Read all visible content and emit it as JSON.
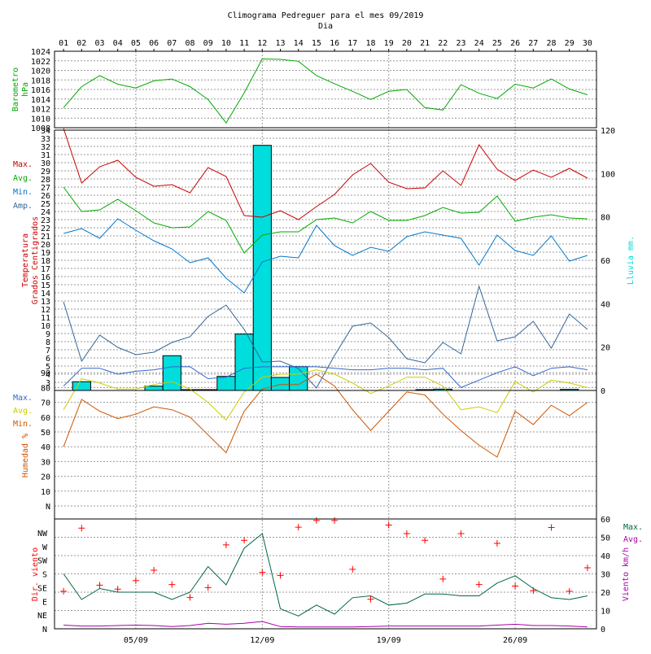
{
  "chart_data": {
    "type": "line",
    "title": "Climograma Pedreguer para el mes 09/2019",
    "xlabel": "Dia",
    "days": [
      "01",
      "02",
      "03",
      "04",
      "05",
      "06",
      "07",
      "08",
      "09",
      "10",
      "11",
      "12",
      "13",
      "14",
      "15",
      "16",
      "17",
      "18",
      "19",
      "20",
      "21",
      "22",
      "23",
      "24",
      "25",
      "26",
      "27",
      "28",
      "29",
      "30"
    ],
    "week_ticks": [
      "05/09",
      "12/09",
      "19/09",
      "26/09"
    ],
    "colors": {
      "max": "#cc0000",
      "avg": "#00aa00",
      "min": "#0077cc",
      "amp": "#336699",
      "rain": "#00dddd",
      "pressure": "#00aa00",
      "hum_max": "#3366cc",
      "hum_avg": "#cccc00",
      "hum_min": "#cc5500",
      "wind_dir": "#ff0000",
      "wind_max": "#006644",
      "wind_avg": "#aa00aa"
    },
    "pressure": {
      "ylabel": "Barometro hPa",
      "ylim": [
        1008,
        1024
      ],
      "ticks": [
        "1008",
        "1010",
        "1012",
        "1014",
        "1016",
        "1018",
        "1020",
        "1022",
        "1024"
      ],
      "values": [
        1012.2,
        1016.6,
        1018.9,
        1017.1,
        1016.3,
        1017.8,
        1018.2,
        1016.6,
        1013.9,
        1009.0,
        1015.3,
        1022.4,
        1022.3,
        1021.9,
        1018.9,
        1017.2,
        1015.6,
        1013.9,
        1015.6,
        1016.0,
        1012.2,
        1011.7,
        1017.0,
        1015.2,
        1014.1,
        1017.1,
        1016.3,
        1018.2,
        1016.1,
        1014.9
      ]
    },
    "temperature": {
      "ylabel": "Temperatura Grados Centigrados",
      "ylim": [
        2,
        34
      ],
      "ticks": [
        "3",
        "4",
        "5",
        "6",
        "7",
        "8",
        "9",
        "10",
        "11",
        "12",
        "13",
        "14",
        "15",
        "16",
        "17",
        "18",
        "19",
        "20",
        "21",
        "22",
        "23",
        "24",
        "25",
        "26",
        "27",
        "28",
        "29",
        "30",
        "31",
        "32",
        "33",
        "34"
      ],
      "legend": [
        "Max.",
        "Avg.",
        "Min.",
        "Amp."
      ],
      "max": [
        34.2,
        27.5,
        29.5,
        30.3,
        28.2,
        27.1,
        27.3,
        26.3,
        29.4,
        28.3,
        23.5,
        23.3,
        24.1,
        23.0,
        24.6,
        26.1,
        28.5,
        29.9,
        27.6,
        26.8,
        26.9,
        29.0,
        27.2,
        32.2,
        29.2,
        27.8,
        29.1,
        28.2,
        29.3,
        28.1
      ],
      "avg": [
        27.0,
        24.0,
        24.2,
        25.5,
        24.1,
        22.6,
        22.0,
        22.1,
        24.0,
        22.9,
        18.9,
        21.1,
        21.5,
        21.5,
        23.0,
        23.2,
        22.6,
        24.0,
        22.9,
        22.9,
        23.5,
        24.5,
        23.8,
        23.9,
        25.9,
        22.8,
        23.3,
        23.6,
        23.2,
        23.1
      ],
      "min": [
        21.3,
        21.9,
        20.7,
        23.1,
        21.7,
        20.4,
        19.4,
        17.7,
        18.3,
        15.8,
        14.0,
        17.8,
        18.5,
        18.3,
        22.3,
        19.8,
        18.6,
        19.6,
        19.1,
        20.9,
        21.5,
        21.1,
        20.7,
        17.4,
        21.1,
        19.2,
        18.6,
        21.0,
        17.9,
        18.6
      ],
      "amp": [
        12.9,
        5.6,
        8.8,
        7.3,
        6.4,
        6.7,
        7.9,
        8.6,
        11.1,
        12.5,
        9.5,
        5.5,
        5.6,
        4.7,
        2.3,
        6.3,
        9.9,
        10.3,
        8.5,
        5.9,
        5.4,
        7.9,
        6.5,
        14.8,
        8.1,
        8.6,
        10.5,
        7.2,
        11.4,
        9.5
      ]
    },
    "rain": {
      "ylabel": "Lluvia mm.",
      "ylim": [
        0,
        120
      ],
      "ticks": [
        "0",
        "20",
        "40",
        "60",
        "80",
        "100",
        "120"
      ],
      "values": [
        0,
        4,
        0,
        0,
        0,
        2,
        16,
        0.3,
        0.3,
        6.5,
        26,
        113,
        6,
        11,
        0,
        0,
        0,
        0,
        0,
        0,
        0.3,
        0.6,
        0,
        0,
        0,
        0,
        0,
        0,
        0.5,
        0
      ]
    },
    "humidity": {
      "ylabel": "Humedad %",
      "ylim": [
        0,
        100
      ],
      "ticks": [
        "N",
        "10",
        "20",
        "30",
        "40",
        "50",
        "60",
        "70",
        "80",
        "90"
      ],
      "legend": [
        "Max.",
        "Avg.",
        "Min."
      ],
      "max": [
        81,
        93,
        93,
        89,
        91,
        92,
        94,
        94,
        86,
        87,
        93,
        94,
        94,
        94,
        94,
        93,
        92,
        92,
        93,
        93,
        92,
        93,
        80,
        85,
        90,
        94,
        88,
        93,
        94,
        92
      ],
      "avg": [
        65,
        86,
        83,
        79,
        79,
        82,
        84,
        79,
        70,
        58,
        77,
        87,
        89,
        89,
        92,
        89,
        83,
        76,
        81,
        87,
        87,
        81,
        65,
        67,
        63,
        84,
        77,
        85,
        83,
        80
      ],
      "min": [
        40,
        72,
        64,
        59,
        62,
        67,
        65,
        60,
        48,
        36,
        64,
        79,
        82,
        82,
        89,
        81,
        65,
        51,
        64,
        77,
        75,
        62,
        51,
        41,
        33,
        64,
        55,
        68,
        61,
        70
      ]
    },
    "wind": {
      "ylabel_dir": "Dir. viento",
      "ylabel_speed": "Viento km/h",
      "dir_ticks": [
        "N",
        "NE",
        "E",
        "SE",
        "S",
        "SW",
        "W",
        "NW"
      ],
      "speed_ticks": [
        "0",
        "10",
        "20",
        "30",
        "40",
        "50",
        "60"
      ],
      "legend": [
        "Max.",
        "Avg."
      ],
      "direction": [
        123,
        330,
        143,
        130,
        158,
        192,
        145,
        103,
        135,
        275,
        290,
        185,
        175,
        333,
        355,
        355,
        195,
        97,
        340,
        312,
        290,
        163,
        312,
        145,
        280,
        140,
        125,
        332,
        123,
        200
      ],
      "speed_max": [
        30,
        16,
        22,
        20,
        20,
        20,
        16,
        20,
        34,
        24,
        44,
        52,
        11,
        7,
        13,
        8,
        17,
        18,
        13,
        14,
        19,
        19,
        18,
        18,
        25,
        29,
        22,
        17,
        16,
        18
      ],
      "speed_avg": [
        2,
        1.5,
        1.5,
        1.8,
        2,
        1.8,
        1.2,
        1.8,
        3,
        2.5,
        3,
        4,
        1.2,
        1,
        1,
        1,
        1,
        1.2,
        1.5,
        1.5,
        1.5,
        1.5,
        1.5,
        1.5,
        2,
        2.5,
        1.8,
        1.8,
        1.5,
        1
      ]
    }
  }
}
